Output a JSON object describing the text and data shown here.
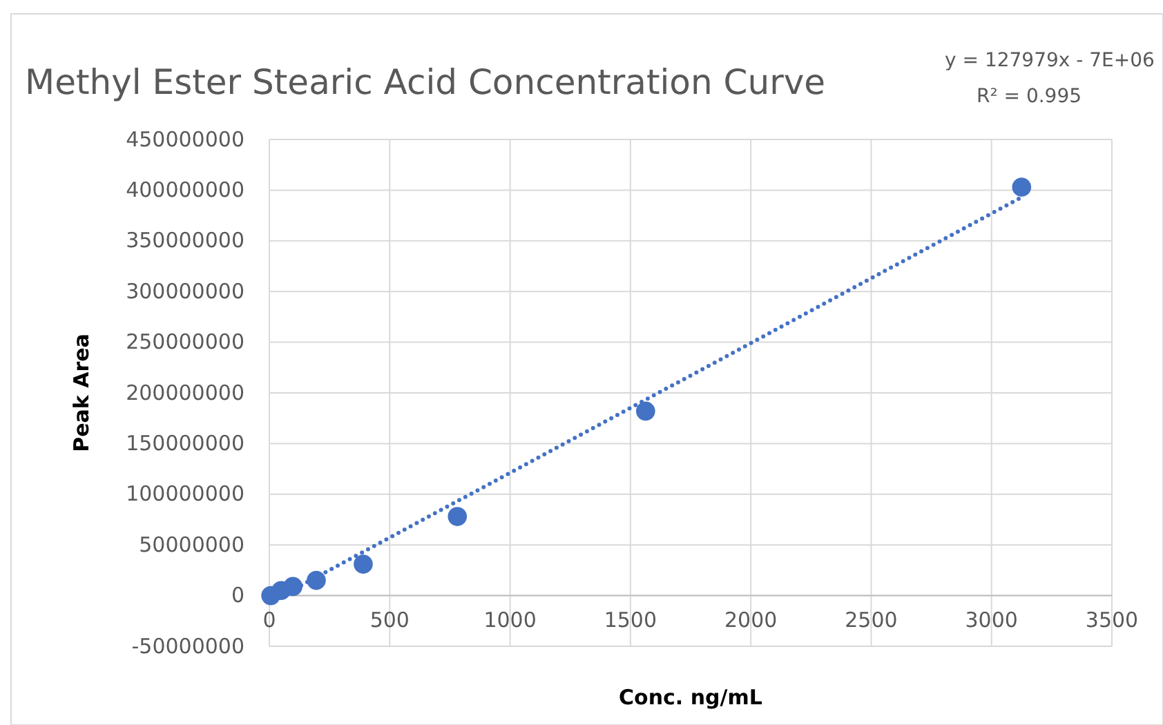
{
  "chart_data": {
    "type": "scatter",
    "title": "Methyl Ester Stearic Acid Concentration Curve",
    "xlabel": "Conc. ng/mL",
    "ylabel": "Peak Area",
    "annotations": [
      "y = 127979x - 7E+06",
      "R² = 0.995"
    ],
    "series": [
      {
        "type": "scatter",
        "color": "#4472c4",
        "x": [
          6,
          49,
          98,
          195,
          390,
          781,
          1563,
          3125
        ],
        "values": [
          0,
          5000000,
          9000000,
          15000000,
          31000000,
          78000000,
          182000000,
          403000000
        ],
        "marker": "circle"
      },
      {
        "type": "line",
        "color": "#4472c4",
        "x": [
          6,
          3125
        ],
        "values": [
          -6000000,
          393000000
        ],
        "line_style": "dotted",
        "marker": "none"
      }
    ],
    "xlim": [
      0,
      3500
    ],
    "xticks": [
      0,
      500,
      1000,
      1500,
      2000,
      2500,
      3000,
      3500
    ],
    "ylim": [
      -50000000,
      450000000
    ],
    "yticks": [
      -50000000,
      0,
      50000000,
      100000000,
      150000000,
      200000000,
      250000000,
      300000000,
      350000000,
      400000000,
      450000000
    ],
    "grid": true
  }
}
